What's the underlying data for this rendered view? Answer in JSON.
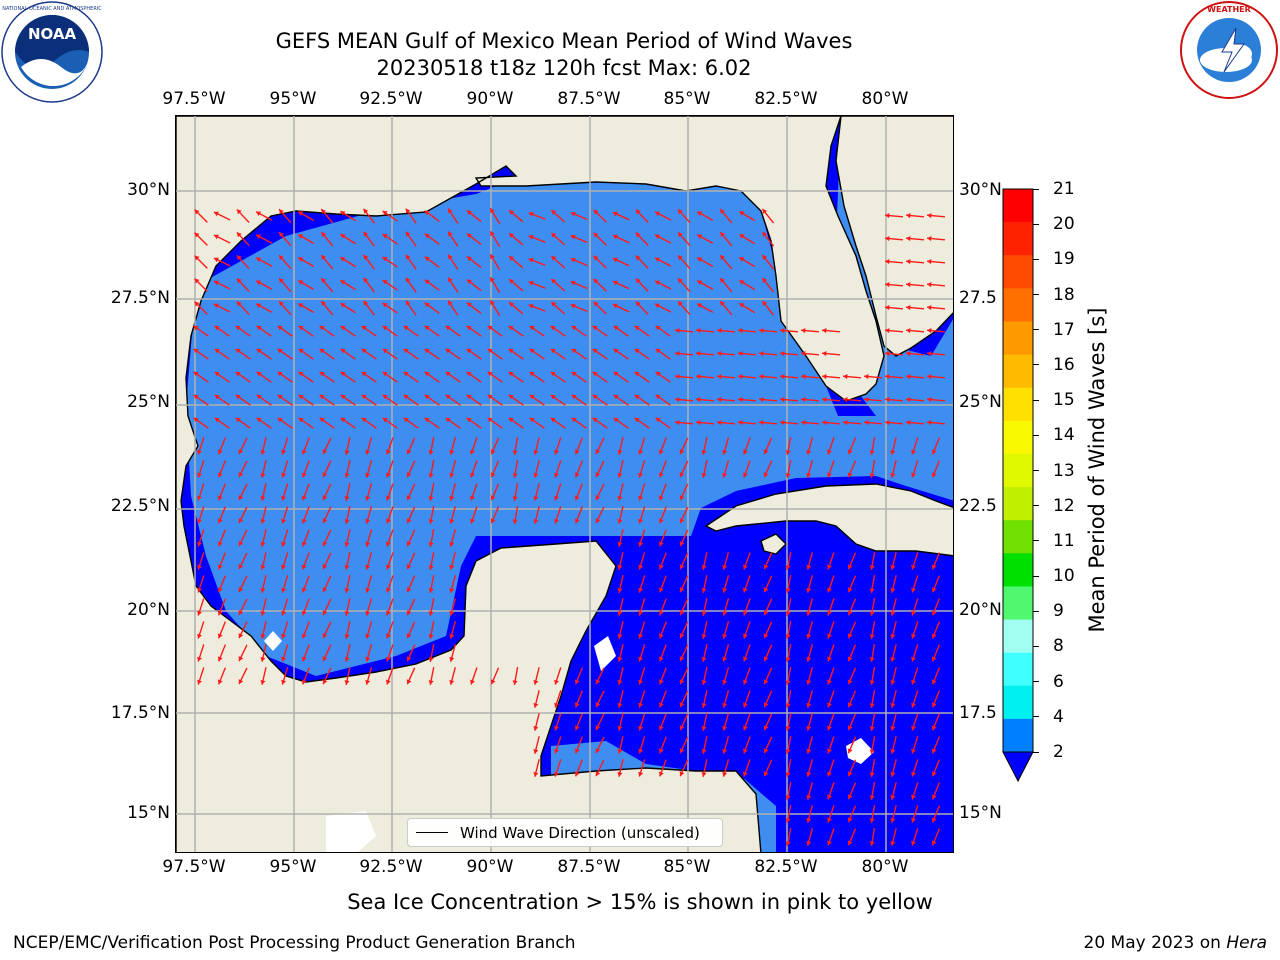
{
  "title": {
    "line1": "GEFS MEAN Gulf of Mexico Mean Period of Wind Waves",
    "line2": "20230518 t18z 120h fcst   Max: 6.02"
  },
  "axes": {
    "lon_top": [
      "97.5°W",
      "95°W",
      "92.5°W",
      "90°W",
      "87.5°W",
      "85°W",
      "82.5°W",
      "80°W"
    ],
    "lon_bottom": [
      "97.5°W",
      "95°W",
      "92.5°W",
      "90°W",
      "87.5°W",
      "85°W",
      "82.5°W",
      "80°W"
    ],
    "lat_left": [
      "30°N",
      "27.5°N",
      "25°N",
      "22.5°N",
      "20°N",
      "17.5°N",
      "15°N"
    ],
    "lat_right": [
      "30°N",
      "27.5",
      "25°N",
      "22.5",
      "20°N",
      "17.5",
      "15°N"
    ]
  },
  "colorbar": {
    "title": "Mean Period of Wind Waves [s]",
    "ticks": [
      "21",
      "20",
      "19",
      "18",
      "17",
      "16",
      "15",
      "14",
      "13",
      "12",
      "11",
      "10",
      "9",
      "8",
      "6",
      "4",
      "2"
    ],
    "colors": [
      "#ff0000",
      "#ff2200",
      "#ff4a00",
      "#ff7000",
      "#ff9900",
      "#ffbb00",
      "#ffe000",
      "#f8f800",
      "#e0f800",
      "#c0f000",
      "#70e000",
      "#00e000",
      "#50f870",
      "#a0fff0",
      "#40ffff",
      "#00f0f0",
      "#0080ff"
    ],
    "under_color": "#0000ff"
  },
  "legend": {
    "label": "Wind Wave Direction (unscaled)"
  },
  "colors": {
    "ocean": "#0000ff",
    "land": "#eeecdc",
    "shelf": "#3e8ef2",
    "shallow": "#23d0ff",
    "arrow": "#ff1a1a",
    "grid": "#b0b0b0"
  },
  "note": "Sea Ice Concentration > 15% is shown in pink to yellow",
  "footer": {
    "left": "NCEP/EMC/Verification Post Processing Product Generation Branch",
    "right_date": "20 May 2023 on ",
    "right_host": "Hera"
  },
  "logos": {
    "noaa": "NOAA",
    "nws": "NATIONAL WEATHER SERVICE"
  }
}
